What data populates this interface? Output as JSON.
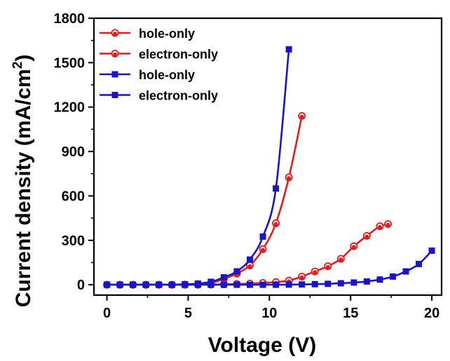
{
  "chart_data": {
    "type": "line",
    "xlabel": "Voltage (V)",
    "ylabel": "Current density (mA/cm",
    "ylabel_sup": "2",
    "ylabel_close": ")",
    "xlim": [
      -0.8,
      20.6
    ],
    "ylim": [
      -70,
      1800
    ],
    "xticks": [
      0,
      5,
      10,
      15,
      20
    ],
    "yticks": [
      0,
      300,
      600,
      900,
      1200,
      1500,
      1800
    ],
    "grid": false,
    "legend_position": "top-left",
    "series": [
      {
        "name": "hole-only",
        "color": "#e11d1d",
        "marker": "circle",
        "x": [
          0,
          0.8,
          1.6,
          2.4,
          3.2,
          4.0,
          4.8,
          5.6,
          6.4,
          7.2,
          8.0,
          8.8,
          9.6,
          10.4,
          11.2,
          12.0
        ],
        "y": [
          0,
          0,
          0,
          0,
          0,
          0,
          1,
          3,
          10,
          40,
          75,
          130,
          240,
          415,
          725,
          1140
        ]
      },
      {
        "name": "electron-only",
        "color": "#e11d1d",
        "marker": "circle",
        "x": [
          0,
          0.8,
          1.6,
          2.4,
          3.2,
          4.0,
          4.8,
          5.6,
          6.4,
          7.2,
          8.0,
          8.8,
          9.6,
          10.4,
          11.2,
          12.0,
          12.8,
          13.6,
          14.4,
          15.2,
          16.0,
          16.8,
          17.3
        ],
        "y": [
          0,
          0,
          0,
          0,
          0,
          0,
          0,
          0,
          1,
          3,
          5,
          8,
          12,
          18,
          28,
          55,
          90,
          125,
          175,
          260,
          330,
          395,
          410
        ]
      },
      {
        "name": "hole-only",
        "color": "#1a14c9",
        "marker": "square",
        "x": [
          0,
          0.8,
          1.6,
          2.4,
          3.2,
          4.0,
          4.8,
          5.6,
          6.4,
          7.2,
          8.0,
          8.8,
          9.6,
          10.4,
          11.2
        ],
        "y": [
          0,
          0,
          0,
          0,
          0,
          0,
          3,
          8,
          20,
          50,
          90,
          170,
          325,
          650,
          1590
        ]
      },
      {
        "name": "electron-only",
        "color": "#1a14c9",
        "marker": "square",
        "x": [
          0,
          0.8,
          1.6,
          2.4,
          3.2,
          4.0,
          4.8,
          5.6,
          6.4,
          7.2,
          8.0,
          8.8,
          9.6,
          10.4,
          11.2,
          12.0,
          12.8,
          13.6,
          14.4,
          15.2,
          16.0,
          16.8,
          17.6,
          18.4,
          19.2,
          20.0
        ],
        "y": [
          0,
          0,
          0,
          0,
          0,
          0,
          0,
          0,
          0,
          0,
          0,
          0,
          0,
          0,
          1,
          2,
          4,
          6,
          10,
          15,
          22,
          35,
          55,
          90,
          140,
          230
        ]
      }
    ]
  }
}
